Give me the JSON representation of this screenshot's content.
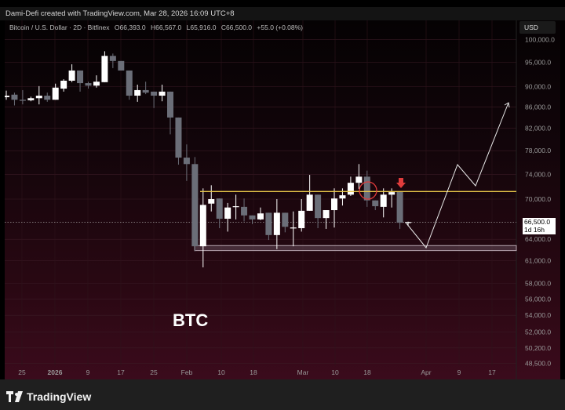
{
  "credit": "Dami-Defi created with TradingView.com, Mar 28, 2026 16:09 UTC+8",
  "legend": {
    "symbol": "Bitcoin / U.S. Dollar · 2D · Bitfinex",
    "open": "O66,393.0",
    "high": "H66,567.0",
    "low": "L65,916.0",
    "close": "C66,500.0",
    "change": "+55.0 (+0.08%)"
  },
  "currency": "USD",
  "last_price": {
    "value": "66,500.0",
    "countdown": "1d 16h"
  },
  "annotation_text": "BTC",
  "footer": {
    "brand": "TradingView"
  },
  "colors": {
    "bull": "#ffffff",
    "bear": "#6b6e78",
    "resistance": "#e9c84a",
    "support_zone": "#8a7380",
    "marker": "#e03c3c"
  },
  "chart_data": {
    "type": "candlestick",
    "scale": "log",
    "price_ticks": [
      100000,
      95000,
      90000,
      86000,
      82000,
      78000,
      74000,
      70000,
      64000,
      61000,
      58000,
      56000,
      54000,
      52000,
      50200,
      48500
    ],
    "price_tick_labels": [
      "100,000.0",
      "95,000.0",
      "90,000.0",
      "86,000.0",
      "82,000.0",
      "78,000.0",
      "74,000.0",
      "70,000.0",
      "64,000.0",
      "61,000.0",
      "58,000.0",
      "56,000.0",
      "54,000.0",
      "52,000.0",
      "50,200.0",
      "48,500.0"
    ],
    "time_labels": [
      "25",
      "2026",
      "9",
      "17",
      "25",
      "Feb",
      "10",
      "18",
      "Mar",
      "10",
      "18",
      "Apr",
      "9",
      "17"
    ],
    "resistance_level": 71200,
    "support_zone": [
      62400,
      63100
    ],
    "candles": [
      [
        87900,
        89200,
        87400,
        88200
      ],
      [
        88400,
        88800,
        86300,
        87400
      ],
      [
        87400,
        89300,
        86500,
        87200
      ],
      [
        87300,
        88000,
        87100,
        87700
      ],
      [
        87700,
        90100,
        86500,
        88200
      ],
      [
        88200,
        88800,
        87000,
        87400
      ],
      [
        87400,
        90600,
        87400,
        89800
      ],
      [
        89600,
        91500,
        89000,
        91200
      ],
      [
        91200,
        94600,
        90900,
        93300
      ],
      [
        93300,
        93300,
        89000,
        90700
      ],
      [
        90700,
        91000,
        89600,
        90200
      ],
      [
        90200,
        92300,
        89800,
        91000
      ],
      [
        90900,
        97400,
        90900,
        96400
      ],
      [
        96400,
        96900,
        93800,
        95300
      ],
      [
        95300,
        95300,
        93300,
        93300
      ],
      [
        93300,
        93300,
        87400,
        88200
      ],
      [
        88200,
        90400,
        87000,
        89300
      ],
      [
        89300,
        91000,
        88500,
        88800
      ],
      [
        89000,
        89000,
        85800,
        88200
      ],
      [
        88200,
        90400,
        87100,
        89000
      ],
      [
        89000,
        89000,
        80900,
        84000
      ],
      [
        84000,
        84000,
        75600,
        76800
      ],
      [
        76800,
        79100,
        72900,
        75700
      ],
      [
        75700,
        76900,
        62300,
        63000
      ],
      [
        63000,
        71700,
        60100,
        69100
      ],
      [
        69300,
        72200,
        68100,
        70000
      ],
      [
        70100,
        70100,
        65600,
        67000
      ],
      [
        67000,
        69400,
        65100,
        68700
      ],
      [
        68800,
        70700,
        66900,
        68900
      ],
      [
        68800,
        70100,
        66600,
        67500
      ],
      [
        67500,
        67500,
        66200,
        66900
      ],
      [
        66900,
        68700,
        66800,
        67800
      ],
      [
        67900,
        67900,
        63900,
        64600
      ],
      [
        64600,
        70000,
        62600,
        67900
      ],
      [
        67900,
        67900,
        65000,
        65800
      ],
      [
        65700,
        68100,
        63000,
        65700
      ],
      [
        65600,
        70000,
        65100,
        68200
      ],
      [
        68200,
        73900,
        68200,
        70700
      ],
      [
        70700,
        70700,
        65600,
        67100
      ],
      [
        67100,
        68300,
        65500,
        68300
      ],
      [
        68300,
        71700,
        65700,
        70100
      ],
      [
        70100,
        71700,
        69000,
        70600
      ],
      [
        70700,
        73600,
        70500,
        72600
      ],
      [
        72600,
        75700,
        71600,
        73600
      ],
      [
        73600,
        74600,
        68800,
        69800
      ],
      [
        69800,
        69800,
        68300,
        68900
      ],
      [
        68800,
        71700,
        67200,
        70700
      ],
      [
        70700,
        71700,
        68700,
        71100
      ],
      [
        71200,
        71200,
        65500,
        66400
      ],
      [
        66393,
        66567,
        65916,
        66500
      ]
    ]
  }
}
